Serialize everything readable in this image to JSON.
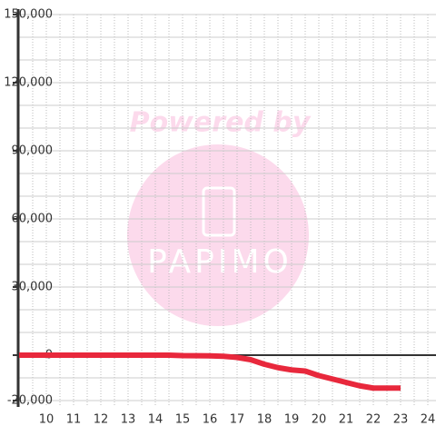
{
  "chart_data": {
    "type": "line",
    "x": [
      9,
      10,
      11,
      12,
      13,
      14,
      14.5,
      15,
      16,
      16.5,
      17,
      17.5,
      18,
      18.5,
      19,
      19.5,
      20,
      20.5,
      21,
      21.5,
      22,
      23
    ],
    "values": [
      0,
      0,
      0,
      0,
      0,
      0,
      0,
      -200,
      -300,
      -500,
      -1000,
      -2000,
      -4000,
      -5500,
      -6500,
      -7000,
      -9000,
      -10500,
      -12000,
      -13500,
      -14500,
      -14500
    ],
    "color": "#e8283c",
    "xlim": [
      9,
      24.3
    ],
    "xticks": [
      10,
      11,
      12,
      13,
      14,
      15,
      16,
      17,
      18,
      19,
      20,
      21,
      22,
      23,
      24
    ],
    "ylim": [
      -20000,
      150000
    ],
    "yticks": [
      {
        "value": -20000,
        "label": "-20,000"
      },
      0,
      {
        "value": 30000,
        "label": "30,000"
      },
      {
        "value": 60000,
        "label": "60,000"
      },
      {
        "value": 90000,
        "label": "90,000"
      },
      {
        "value": 120000,
        "label": "120,000"
      },
      {
        "value": 150000,
        "label": "150,000"
      }
    ],
    "grid": true
  },
  "watermark": {
    "text": "Powered by",
    "logo": "PAPIMO"
  }
}
